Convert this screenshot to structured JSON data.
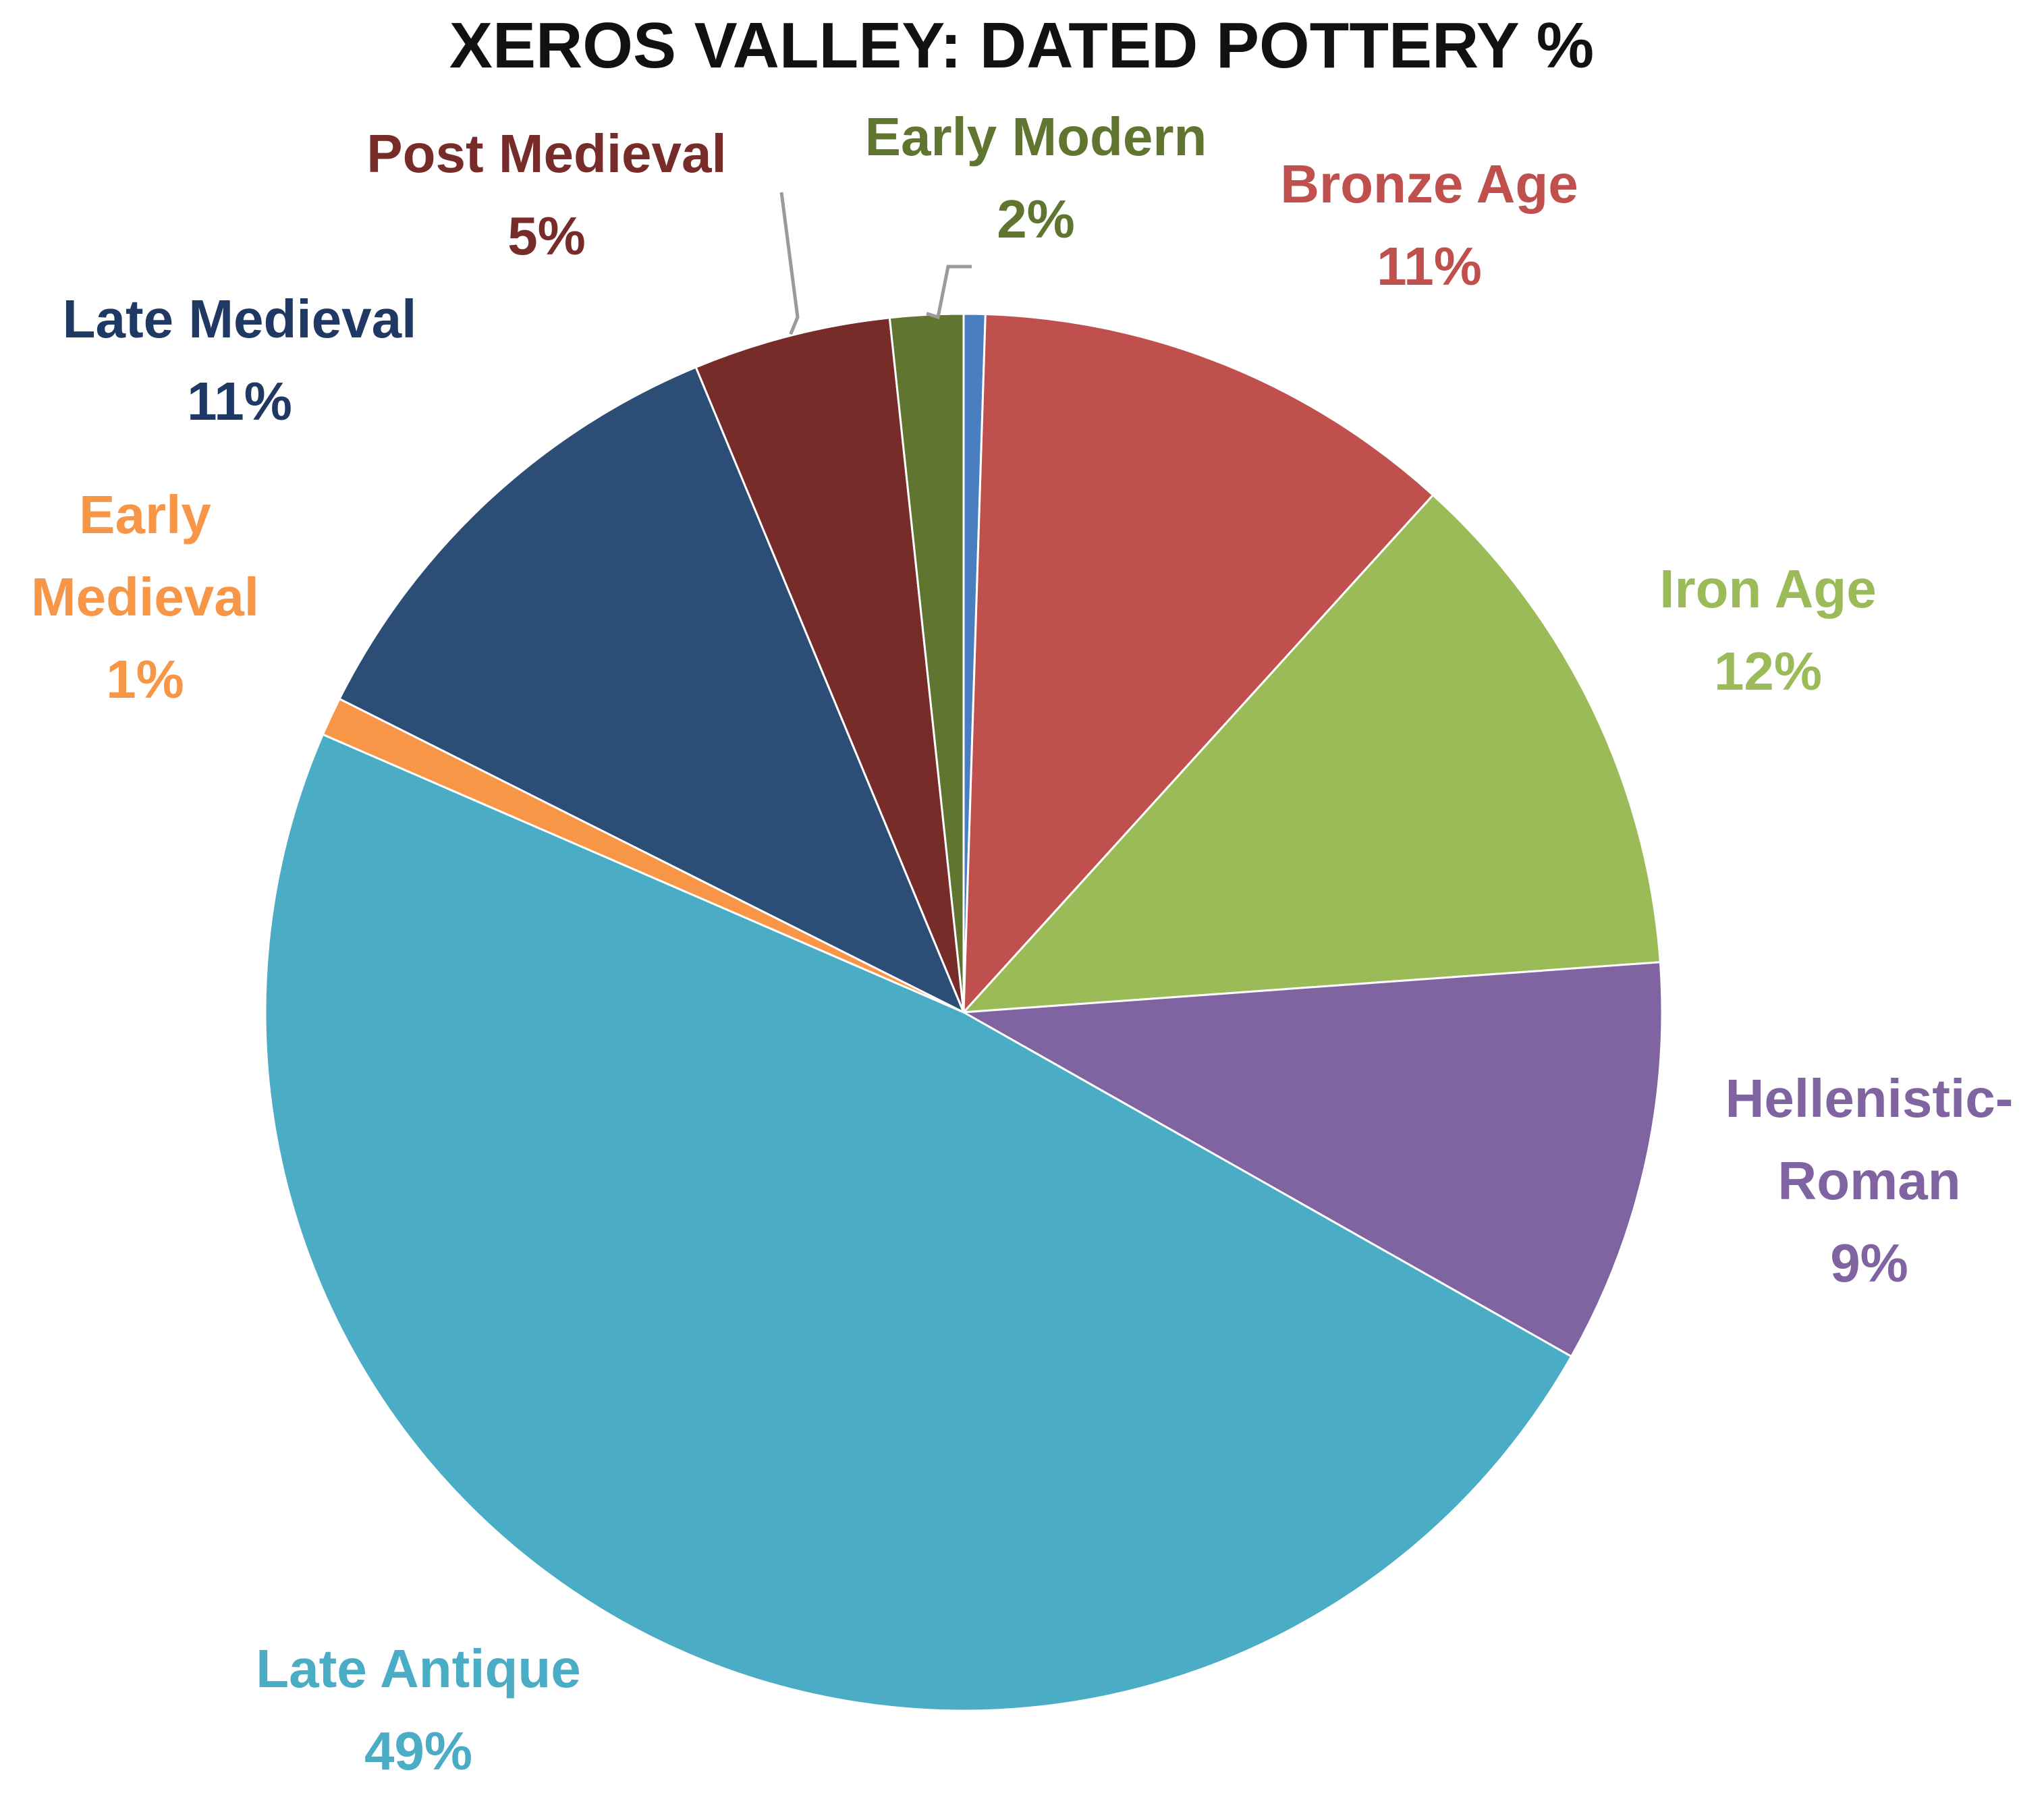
{
  "chart_data": {
    "type": "pie",
    "title": "XEROS VALLEY: DATED POTTERY %",
    "slices": [
      {
        "label": "",
        "percent": "",
        "value": 0.5,
        "color": "#4A7EC2"
      },
      {
        "label": "Bronze Age",
        "percent": "11%",
        "value": 11.3,
        "color": "#C0504D"
      },
      {
        "label": "Iron Age",
        "percent": "12%",
        "value": 12.2,
        "color": "#9BBB59"
      },
      {
        "label": "Hellenistic- Roman",
        "label_lines": [
          "Hellenistic-",
          "Roman"
        ],
        "percent": "9%",
        "value": 9.4,
        "color": "#8064A2"
      },
      {
        "label": "Late Antique",
        "percent": "49%",
        "value": 48.6,
        "color": "#4BACC6"
      },
      {
        "label": "Early Medieval",
        "label_lines": [
          "Early",
          "Medieval"
        ],
        "percent": "1%",
        "value": 0.9,
        "color": "#F79646"
      },
      {
        "label": "Late Medieval",
        "percent": "11%",
        "value": 11.4,
        "color": "#2C4D75"
      },
      {
        "label": "Post Medieval",
        "percent": "5%",
        "value": 4.6,
        "color": "#772C2A"
      },
      {
        "label": "Early Modern",
        "percent": "2%",
        "value": 1.7,
        "color": "#5F7530"
      }
    ],
    "label_colors": [
      "#4A7EC2",
      "#C0504D",
      "#9BBB59",
      "#8064A2",
      "#4BACC6",
      "#F79646",
      "#1F3864",
      "#772C2A",
      "#5F7530"
    ],
    "legend": "none"
  }
}
